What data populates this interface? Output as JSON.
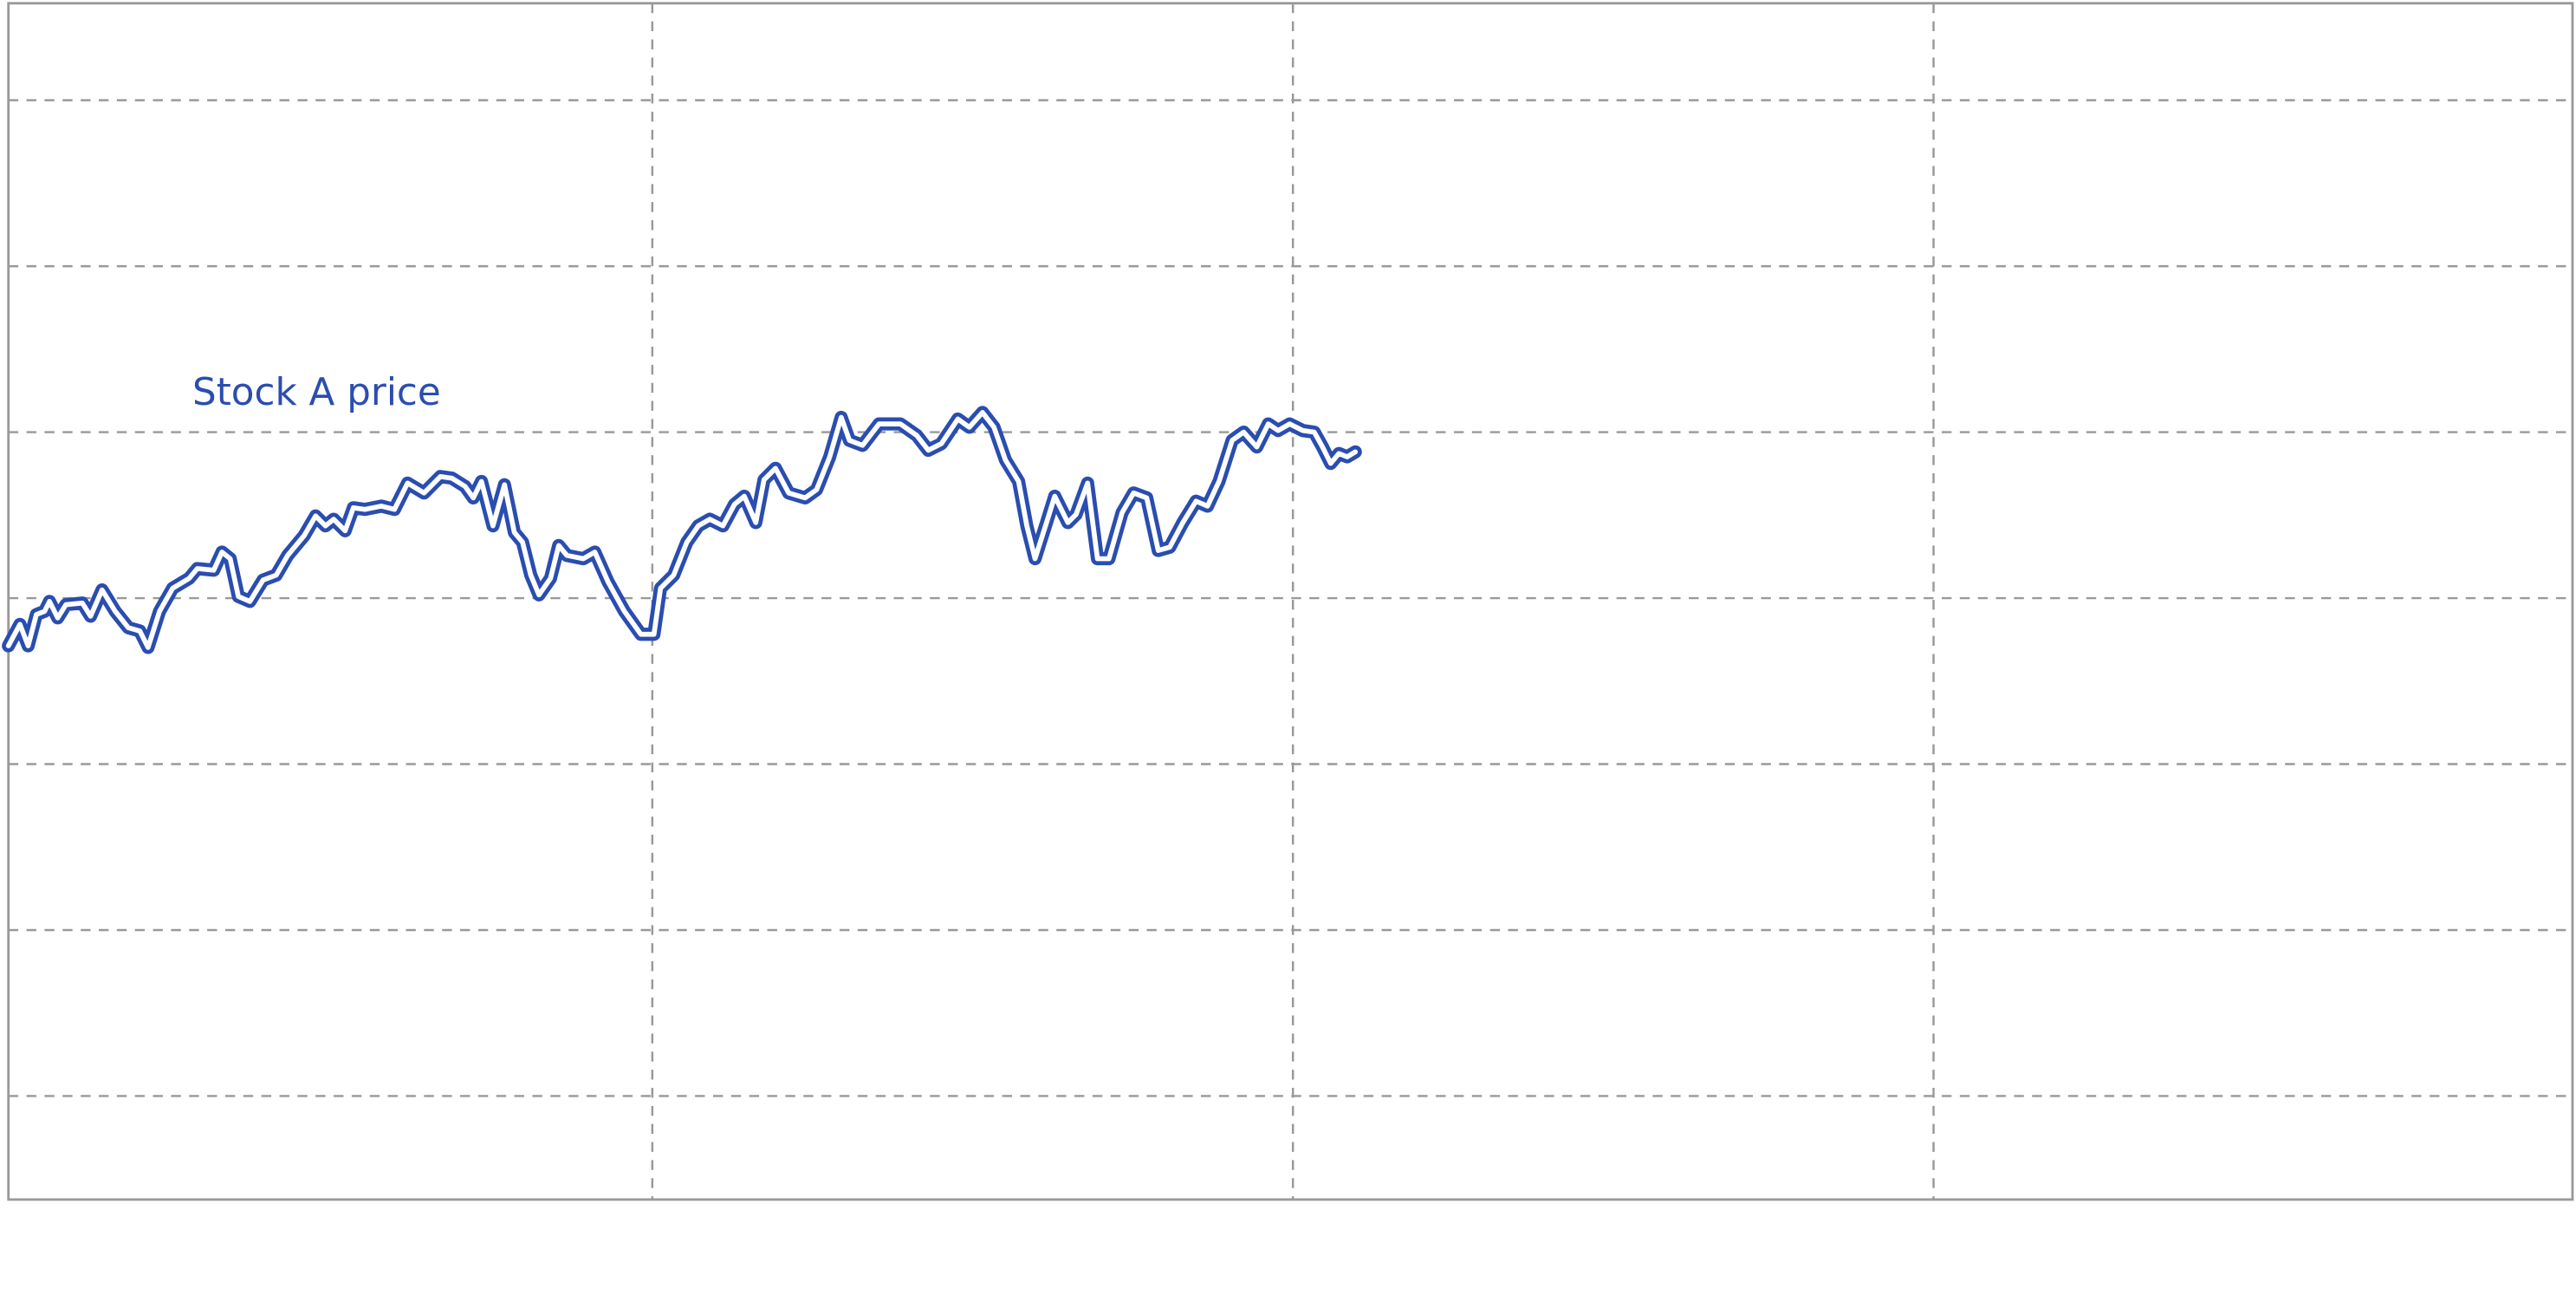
{
  "chart_data": {
    "type": "line",
    "xlim": [
      0,
      1561
    ],
    "xticks": [
      392,
      782,
      1172
    ],
    "ylim": [
      0,
      728
    ],
    "yticks": [
      63,
      164,
      265,
      366,
      467,
      568,
      669
    ],
    "grid": true,
    "x": [
      0,
      7,
      12,
      17,
      22,
      25,
      30,
      35,
      45,
      50,
      57,
      65,
      73,
      80,
      85,
      92,
      100,
      110,
      115,
      125,
      130,
      135,
      140,
      147,
      155,
      163,
      170,
      180,
      187,
      193,
      198,
      205,
      210,
      217,
      227,
      235,
      243,
      253,
      263,
      270,
      278,
      283,
      288,
      295,
      302,
      308,
      313,
      318,
      323,
      330,
      335,
      340,
      350,
      357,
      365,
      375,
      385,
      393,
      397,
      405,
      413,
      420,
      427,
      435,
      442,
      448,
      455,
      460,
      467,
      475,
      485,
      492,
      500,
      507,
      512,
      520,
      530,
      543,
      553,
      560,
      568,
      578,
      585,
      593,
      600,
      607,
      615,
      620,
      625,
      632,
      637,
      645,
      650,
      657,
      663,
      670,
      678,
      685,
      693,
      700,
      707,
      715,
      723,
      730,
      737,
      745,
      752,
      760,
      767,
      773,
      780,
      788,
      795,
      800,
      805,
      810,
      815,
      820
    ],
    "series": [
      {
        "name": "Stock A price",
        "color": "#2a4db0",
        "values": [
          337,
          350,
          337,
          356,
          358,
          364,
          354,
          362,
          363,
          355,
          371,
          358,
          348,
          346,
          336,
          358,
          372,
          378,
          384,
          383,
          394,
          390,
          367,
          364,
          377,
          380,
          392,
          404,
          416,
          410,
          414,
          407,
          421,
          420,
          422,
          420,
          436,
          430,
          440,
          439,
          434,
          427,
          437,
          410,
          435,
          406,
          400,
          380,
          368,
          378,
          398,
          392,
          390,
          394,
          376,
          358,
          344,
          344,
          372,
          380,
          400,
          410,
          414,
          410,
          423,
          428,
          412,
          438,
          445,
          430,
          427,
          432,
          452,
          476,
          462,
          459,
          472,
          472,
          465,
          456,
          460,
          475,
          470,
          479,
          470,
          450,
          437,
          410,
          390,
          412,
          428,
          412,
          417,
          436,
          390,
          390,
          418,
          430,
          427,
          395,
          397,
          412,
          425,
          422,
          437,
          462,
          467,
          458,
          472,
          468,
          472,
          468,
          467,
          458,
          448,
          454,
          452,
          455
        ]
      }
    ]
  }
}
